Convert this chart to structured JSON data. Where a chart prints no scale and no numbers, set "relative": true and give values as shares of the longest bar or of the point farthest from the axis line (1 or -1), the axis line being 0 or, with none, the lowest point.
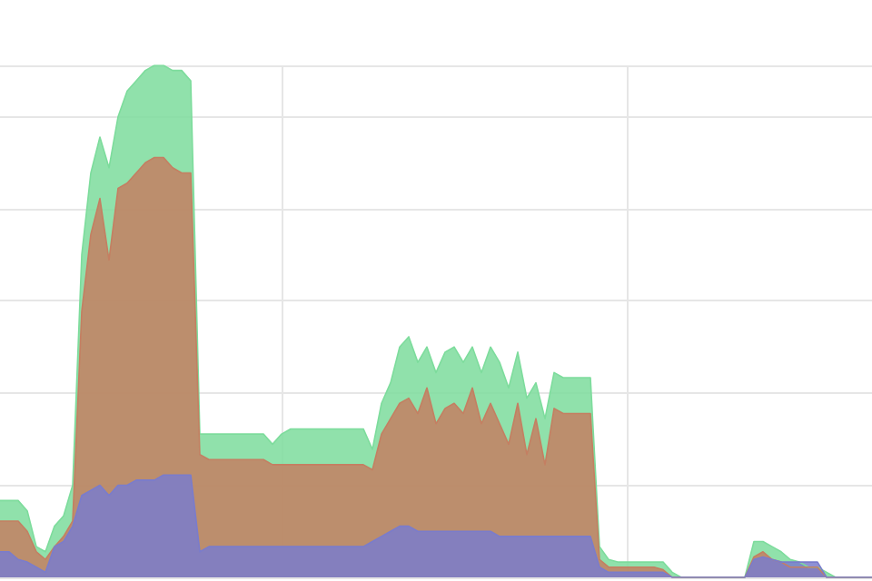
{
  "chart_data": {
    "type": "area",
    "relative": true,
    "grid": true,
    "categories": [
      null,
      null,
      null,
      null,
      null,
      null,
      null,
      null,
      null,
      null,
      null,
      null,
      null,
      null,
      null,
      null,
      null,
      null,
      null,
      null,
      null,
      null,
      null,
      null,
      null,
      null,
      null,
      null,
      null,
      null,
      null,
      null,
      null,
      null,
      null,
      null,
      null,
      null,
      null,
      null,
      null,
      null,
      null,
      null,
      null,
      null,
      null,
      null,
      null,
      null,
      null,
      null,
      null,
      null,
      null,
      null,
      null,
      null,
      null,
      null,
      null,
      null,
      null,
      null,
      null,
      null,
      null,
      null,
      null,
      null,
      null,
      null,
      null,
      null,
      null,
      null,
      null,
      null,
      null,
      null,
      null,
      null,
      null,
      null,
      null,
      null,
      null,
      null,
      null,
      null,
      null,
      null,
      null,
      null,
      null,
      null,
      null
    ],
    "series": [
      {
        "color": "#7ddc9c",
        "values": [
          0.15,
          0.15,
          0.15,
          0.13,
          0.06,
          0.05,
          0.1,
          0.12,
          0.18,
          0.63,
          0.79,
          0.86,
          0.8,
          0.9,
          0.95,
          0.97,
          0.99,
          1,
          1,
          0.99,
          0.99,
          0.97,
          0.28,
          0.28,
          0.28,
          0.28,
          0.28,
          0.28,
          0.28,
          0.28,
          0.26,
          0.28,
          0.29,
          0.29,
          0.29,
          0.29,
          0.29,
          0.29,
          0.29,
          0.29,
          0.29,
          0.25,
          0.34,
          0.38,
          0.45,
          0.47,
          0.42,
          0.45,
          0.4,
          0.44,
          0.45,
          0.42,
          0.45,
          0.4,
          0.45,
          0.42,
          0.37,
          0.44,
          0.35,
          0.38,
          0.31,
          0.4,
          0.39,
          0.39,
          0.39,
          0.39,
          0.06,
          0.035,
          0.03,
          0.03,
          0.03,
          0.03,
          0.03,
          0.03,
          0.01,
          0,
          0,
          0,
          0,
          0,
          0,
          0,
          0,
          0.07,
          0.07,
          0.06,
          0.05,
          0.035,
          0.03,
          0.02,
          0.02,
          0.01,
          0,
          0,
          0,
          0,
          0
        ]
      },
      {
        "color": "#c47f62",
        "values": [
          0.11,
          0.11,
          0.11,
          0.09,
          0.05,
          0.035,
          0.06,
          0.08,
          0.11,
          0.52,
          0.67,
          0.74,
          0.62,
          0.76,
          0.77,
          0.79,
          0.81,
          0.82,
          0.82,
          0.8,
          0.79,
          0.79,
          0.24,
          0.23,
          0.23,
          0.23,
          0.23,
          0.23,
          0.23,
          0.23,
          0.22,
          0.22,
          0.22,
          0.22,
          0.22,
          0.22,
          0.22,
          0.22,
          0.22,
          0.22,
          0.22,
          0.21,
          0.28,
          0.31,
          0.34,
          0.35,
          0.32,
          0.37,
          0.3,
          0.33,
          0.34,
          0.32,
          0.37,
          0.3,
          0.34,
          0.3,
          0.26,
          0.34,
          0.24,
          0.31,
          0.22,
          0.33,
          0.32,
          0.32,
          0.32,
          0.32,
          0.035,
          0.02,
          0.02,
          0.02,
          0.02,
          0.02,
          0.02,
          0.015,
          0,
          0,
          0,
          0,
          0,
          0,
          0,
          0,
          0,
          0.04,
          0.05,
          0.035,
          0.03,
          0.02,
          0.02,
          0.02,
          0.02,
          0,
          0,
          0,
          0,
          0,
          0
        ]
      },
      {
        "color": "#7a7ccc",
        "values": [
          0.05,
          0.05,
          0.035,
          0.03,
          0.02,
          0.01,
          0.06,
          0.07,
          0.1,
          0.16,
          0.17,
          0.18,
          0.16,
          0.18,
          0.18,
          0.19,
          0.19,
          0.19,
          0.2,
          0.2,
          0.2,
          0.2,
          0.05,
          0.06,
          0.06,
          0.06,
          0.06,
          0.06,
          0.06,
          0.06,
          0.06,
          0.06,
          0.06,
          0.06,
          0.06,
          0.06,
          0.06,
          0.06,
          0.06,
          0.06,
          0.06,
          0.07,
          0.08,
          0.09,
          0.1,
          0.1,
          0.09,
          0.09,
          0.09,
          0.09,
          0.09,
          0.09,
          0.09,
          0.09,
          0.09,
          0.08,
          0.08,
          0.08,
          0.08,
          0.08,
          0.08,
          0.08,
          0.08,
          0.08,
          0.08,
          0.08,
          0.02,
          0.01,
          0.01,
          0.01,
          0.01,
          0.01,
          0.01,
          0.01,
          0,
          0,
          0,
          0,
          0,
          0,
          0,
          0,
          0,
          0.035,
          0.04,
          0.035,
          0.03,
          0.03,
          0.03,
          0.03,
          0.03,
          0,
          0,
          0,
          0,
          0,
          0
        ]
      }
    ]
  }
}
